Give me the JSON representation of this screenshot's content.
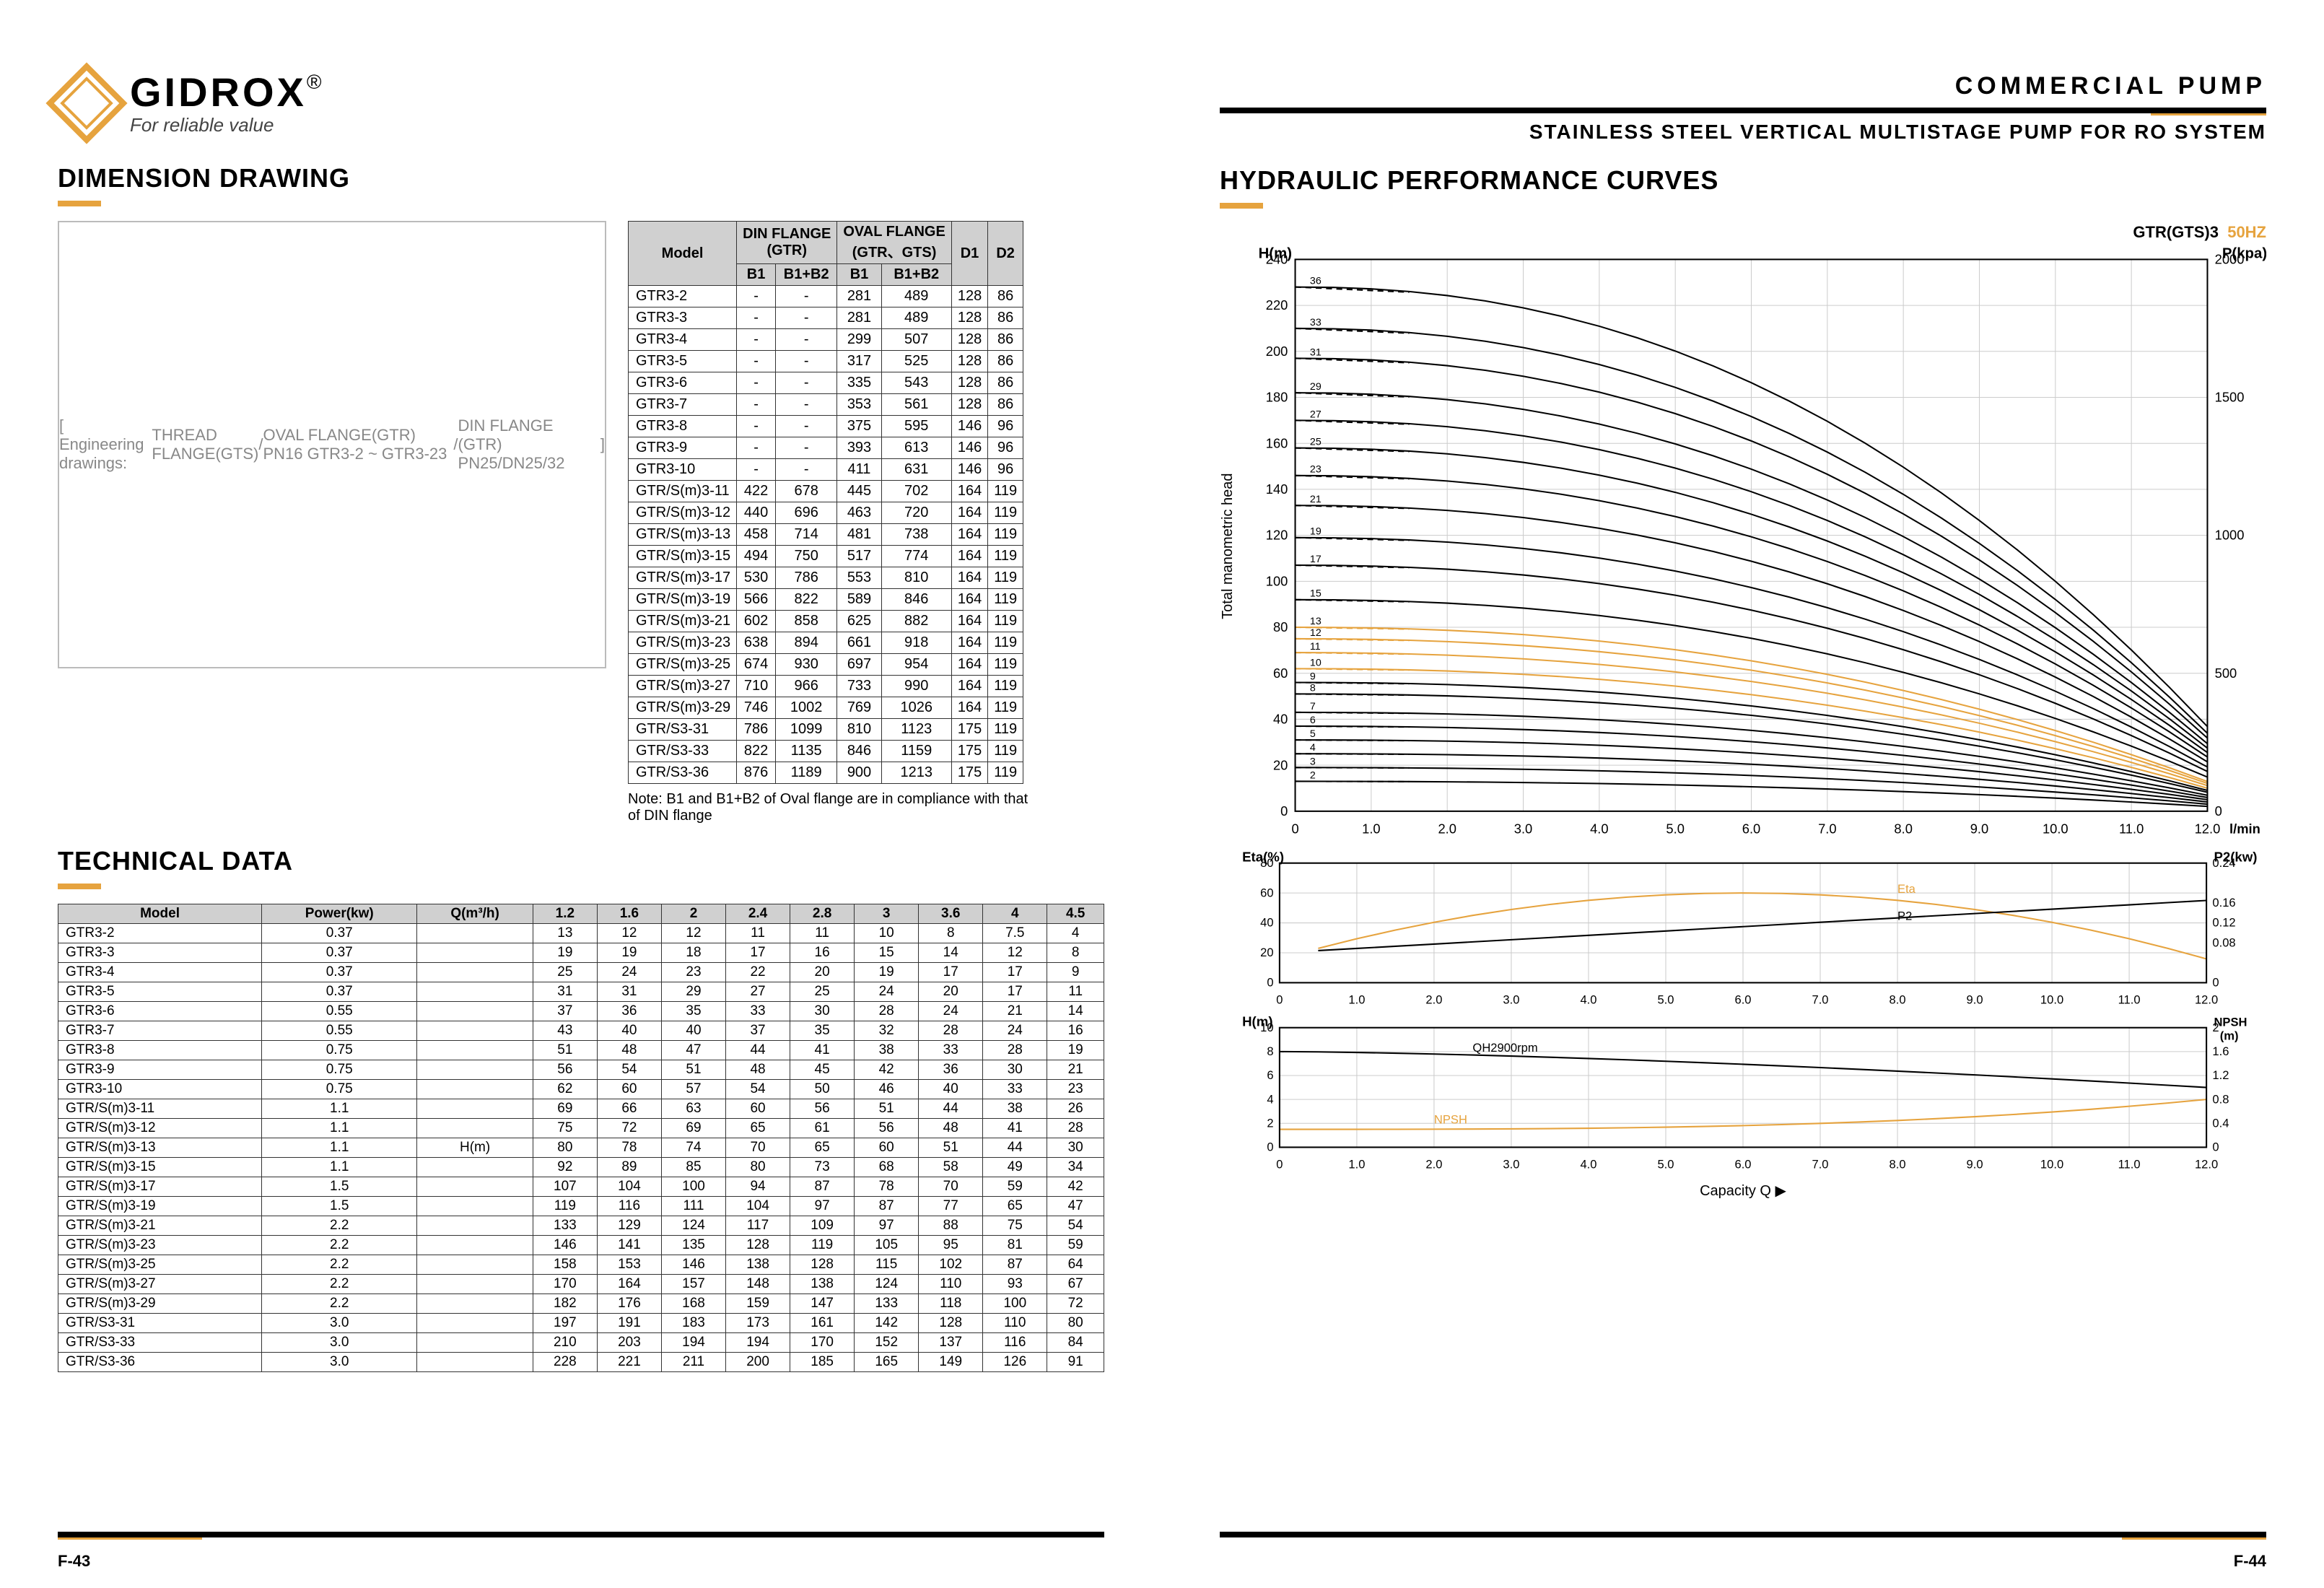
{
  "brand": "GIDROX",
  "brand_r": "®",
  "tagline": "For reliable value",
  "page_labels": {
    "left": "F-43",
    "right": "F-44"
  },
  "left_titles": {
    "dimension": "DIMENSION DRAWING",
    "technical": "TECHNICAL DATA"
  },
  "drawing_labels": {
    "thread": "THREAD FLANGE(GTS)",
    "oval": "OVAL FLANGE(GTR) PN16\nGTR3-2 ~ GTR3-23",
    "din": "DIN FLANGE (GTR)\nPN25/DN25/32"
  },
  "dim_table": {
    "header1": [
      "Model",
      "DIN FLANGE\n(GTR)",
      "OVAL FLANGE\n(GTR、GTS)",
      "D1",
      "D2"
    ],
    "header2": [
      "",
      "B1",
      "B1+B2",
      "B1",
      "B1+B2",
      "",
      ""
    ],
    "rows": [
      [
        "GTR3-2",
        "-",
        "-",
        "281",
        "489",
        "128",
        "86"
      ],
      [
        "GTR3-3",
        "-",
        "-",
        "281",
        "489",
        "128",
        "86"
      ],
      [
        "GTR3-4",
        "-",
        "-",
        "299",
        "507",
        "128",
        "86"
      ],
      [
        "GTR3-5",
        "-",
        "-",
        "317",
        "525",
        "128",
        "86"
      ],
      [
        "GTR3-6",
        "-",
        "-",
        "335",
        "543",
        "128",
        "86"
      ],
      [
        "GTR3-7",
        "-",
        "-",
        "353",
        "561",
        "128",
        "86"
      ],
      [
        "GTR3-8",
        "-",
        "-",
        "375",
        "595",
        "146",
        "96"
      ],
      [
        "GTR3-9",
        "-",
        "-",
        "393",
        "613",
        "146",
        "96"
      ],
      [
        "GTR3-10",
        "-",
        "-",
        "411",
        "631",
        "146",
        "96"
      ],
      [
        "GTR/S(m)3-11",
        "422",
        "678",
        "445",
        "702",
        "164",
        "119"
      ],
      [
        "GTR/S(m)3-12",
        "440",
        "696",
        "463",
        "720",
        "164",
        "119"
      ],
      [
        "GTR/S(m)3-13",
        "458",
        "714",
        "481",
        "738",
        "164",
        "119"
      ],
      [
        "GTR/S(m)3-15",
        "494",
        "750",
        "517",
        "774",
        "164",
        "119"
      ],
      [
        "GTR/S(m)3-17",
        "530",
        "786",
        "553",
        "810",
        "164",
        "119"
      ],
      [
        "GTR/S(m)3-19",
        "566",
        "822",
        "589",
        "846",
        "164",
        "119"
      ],
      [
        "GTR/S(m)3-21",
        "602",
        "858",
        "625",
        "882",
        "164",
        "119"
      ],
      [
        "GTR/S(m)3-23",
        "638",
        "894",
        "661",
        "918",
        "164",
        "119"
      ],
      [
        "GTR/S(m)3-25",
        "674",
        "930",
        "697",
        "954",
        "164",
        "119"
      ],
      [
        "GTR/S(m)3-27",
        "710",
        "966",
        "733",
        "990",
        "164",
        "119"
      ],
      [
        "GTR/S(m)3-29",
        "746",
        "1002",
        "769",
        "1026",
        "164",
        "119"
      ],
      [
        "GTR/S3-31",
        "786",
        "1099",
        "810",
        "1123",
        "175",
        "119"
      ],
      [
        "GTR/S3-33",
        "822",
        "1135",
        "846",
        "1159",
        "175",
        "119"
      ],
      [
        "GTR/S3-36",
        "876",
        "1189",
        "900",
        "1213",
        "175",
        "119"
      ]
    ],
    "note": "Note: B1 and B1+B2 of Oval flange are in compliance with that of DIN flange"
  },
  "tech_table": {
    "headers": [
      "Model",
      "Power(kw)",
      "Q(m³/h)",
      "1.2",
      "1.6",
      "2",
      "2.4",
      "2.8",
      "3",
      "3.6",
      "4",
      "4.5"
    ],
    "unit_col": "H(m)",
    "rows": [
      [
        "GTR3-2",
        "0.37",
        "",
        "13",
        "12",
        "12",
        "11",
        "11",
        "10",
        "8",
        "7.5",
        "4"
      ],
      [
        "GTR3-3",
        "0.37",
        "",
        "19",
        "19",
        "18",
        "17",
        "16",
        "15",
        "14",
        "12",
        "8"
      ],
      [
        "GTR3-4",
        "0.37",
        "",
        "25",
        "24",
        "23",
        "22",
        "20",
        "19",
        "17",
        "17",
        "9"
      ],
      [
        "GTR3-5",
        "0.37",
        "",
        "31",
        "31",
        "29",
        "27",
        "25",
        "24",
        "20",
        "17",
        "11"
      ],
      [
        "GTR3-6",
        "0.55",
        "",
        "37",
        "36",
        "35",
        "33",
        "30",
        "28",
        "24",
        "21",
        "14"
      ],
      [
        "GTR3-7",
        "0.55",
        "",
        "43",
        "40",
        "40",
        "37",
        "35",
        "32",
        "28",
        "24",
        "16"
      ],
      [
        "GTR3-8",
        "0.75",
        "",
        "51",
        "48",
        "47",
        "44",
        "41",
        "38",
        "33",
        "28",
        "19"
      ],
      [
        "GTR3-9",
        "0.75",
        "",
        "56",
        "54",
        "51",
        "48",
        "45",
        "42",
        "36",
        "30",
        "21"
      ],
      [
        "GTR3-10",
        "0.75",
        "",
        "62",
        "60",
        "57",
        "54",
        "50",
        "46",
        "40",
        "33",
        "23"
      ],
      [
        "GTR/S(m)3-11",
        "1.1",
        "",
        "69",
        "66",
        "63",
        "60",
        "56",
        "51",
        "44",
        "38",
        "26"
      ],
      [
        "GTR/S(m)3-12",
        "1.1",
        "",
        "75",
        "72",
        "69",
        "65",
        "61",
        "56",
        "48",
        "41",
        "28"
      ],
      [
        "GTR/S(m)3-13",
        "1.1",
        "",
        "80",
        "78",
        "74",
        "70",
        "65",
        "60",
        "51",
        "44",
        "30"
      ],
      [
        "GTR/S(m)3-15",
        "1.1",
        "",
        "92",
        "89",
        "85",
        "80",
        "73",
        "68",
        "58",
        "49",
        "34"
      ],
      [
        "GTR/S(m)3-17",
        "1.5",
        "",
        "107",
        "104",
        "100",
        "94",
        "87",
        "78",
        "70",
        "59",
        "42"
      ],
      [
        "GTR/S(m)3-19",
        "1.5",
        "",
        "119",
        "116",
        "111",
        "104",
        "97",
        "87",
        "77",
        "65",
        "47"
      ],
      [
        "GTR/S(m)3-21",
        "2.2",
        "",
        "133",
        "129",
        "124",
        "117",
        "109",
        "97",
        "88",
        "75",
        "54"
      ],
      [
        "GTR/S(m)3-23",
        "2.2",
        "",
        "146",
        "141",
        "135",
        "128",
        "119",
        "105",
        "95",
        "81",
        "59"
      ],
      [
        "GTR/S(m)3-25",
        "2.2",
        "",
        "158",
        "153",
        "146",
        "138",
        "128",
        "115",
        "102",
        "87",
        "64"
      ],
      [
        "GTR/S(m)3-27",
        "2.2",
        "",
        "170",
        "164",
        "157",
        "148",
        "138",
        "124",
        "110",
        "93",
        "67"
      ],
      [
        "GTR/S(m)3-29",
        "2.2",
        "",
        "182",
        "176",
        "168",
        "159",
        "147",
        "133",
        "118",
        "100",
        "72"
      ],
      [
        "GTR/S3-31",
        "3.0",
        "",
        "197",
        "191",
        "183",
        "173",
        "161",
        "142",
        "128",
        "110",
        "80"
      ],
      [
        "GTR/S3-33",
        "3.0",
        "",
        "210",
        "203",
        "194",
        "194",
        "170",
        "152",
        "137",
        "116",
        "84"
      ],
      [
        "GTR/S3-36",
        "3.0",
        "",
        "228",
        "221",
        "211",
        "200",
        "185",
        "165",
        "149",
        "126",
        "91"
      ]
    ]
  },
  "right_titles": {
    "t1": "COMMERCIAL   PUMP",
    "t2": "STAINLESS STEEL VERTICAL  MULTISTAGE  PUMP FOR RO SYSTEM",
    "section": "HYDRAULIC PERFORMANCE CURVES",
    "chart_title": "GTR(GTS)3",
    "hz": "50HZ"
  },
  "main_chart": {
    "y_label": "H(m)",
    "y_right_label": "P(kpa)",
    "y_vert": "Total manometric head",
    "x_label": "l/min",
    "x_ticks": [
      "0",
      "1.0",
      "2.0",
      "3.0",
      "4.0",
      "5.0",
      "6.0",
      "7.0",
      "8.0",
      "9.0",
      "10.0",
      "11.0",
      "12.0"
    ],
    "y_ticks": [
      0,
      20,
      40,
      60,
      80,
      100,
      120,
      140,
      160,
      180,
      200,
      220,
      240
    ],
    "y_right_ticks": [
      0,
      500,
      1000,
      1500,
      2000
    ],
    "curve_labels": [
      "36",
      "33",
      "31",
      "29",
      "27",
      "25",
      "23",
      "21",
      "19",
      "17",
      "15",
      "13",
      "12",
      "11",
      "10",
      "9",
      "8",
      "7",
      "6",
      "5",
      "4",
      "3",
      "2"
    ],
    "curve_starts": [
      228,
      210,
      197,
      182,
      170,
      158,
      146,
      133,
      119,
      107,
      92,
      80,
      75,
      69,
      62,
      56,
      51,
      43,
      37,
      31,
      25,
      19,
      13
    ],
    "curve_colors_black": "#000000",
    "curve_colors_accent": "#e6a33e",
    "grid_color": "#cccccc",
    "bg": "#ffffff"
  },
  "eta_chart": {
    "left_label": "Eta(%)",
    "right_label": "P2(kw)",
    "y_left": [
      0,
      20,
      40,
      60,
      80
    ],
    "y_right": [
      0,
      0.08,
      0.12,
      0.16,
      0.24
    ],
    "labels": {
      "eta": "Eta",
      "p2": "P2"
    }
  },
  "npsh_chart": {
    "left_label": "H(m)",
    "right_label": "NPSH\n(m)",
    "y_left": [
      0,
      2,
      4,
      6,
      8,
      10
    ],
    "y_right": [
      0,
      0.4,
      0.8,
      1.2,
      1.6,
      2
    ],
    "labels": {
      "q": "QH2900rpm",
      "npsh": "NPSH"
    },
    "x_label": "Capacity Q  ▶"
  }
}
